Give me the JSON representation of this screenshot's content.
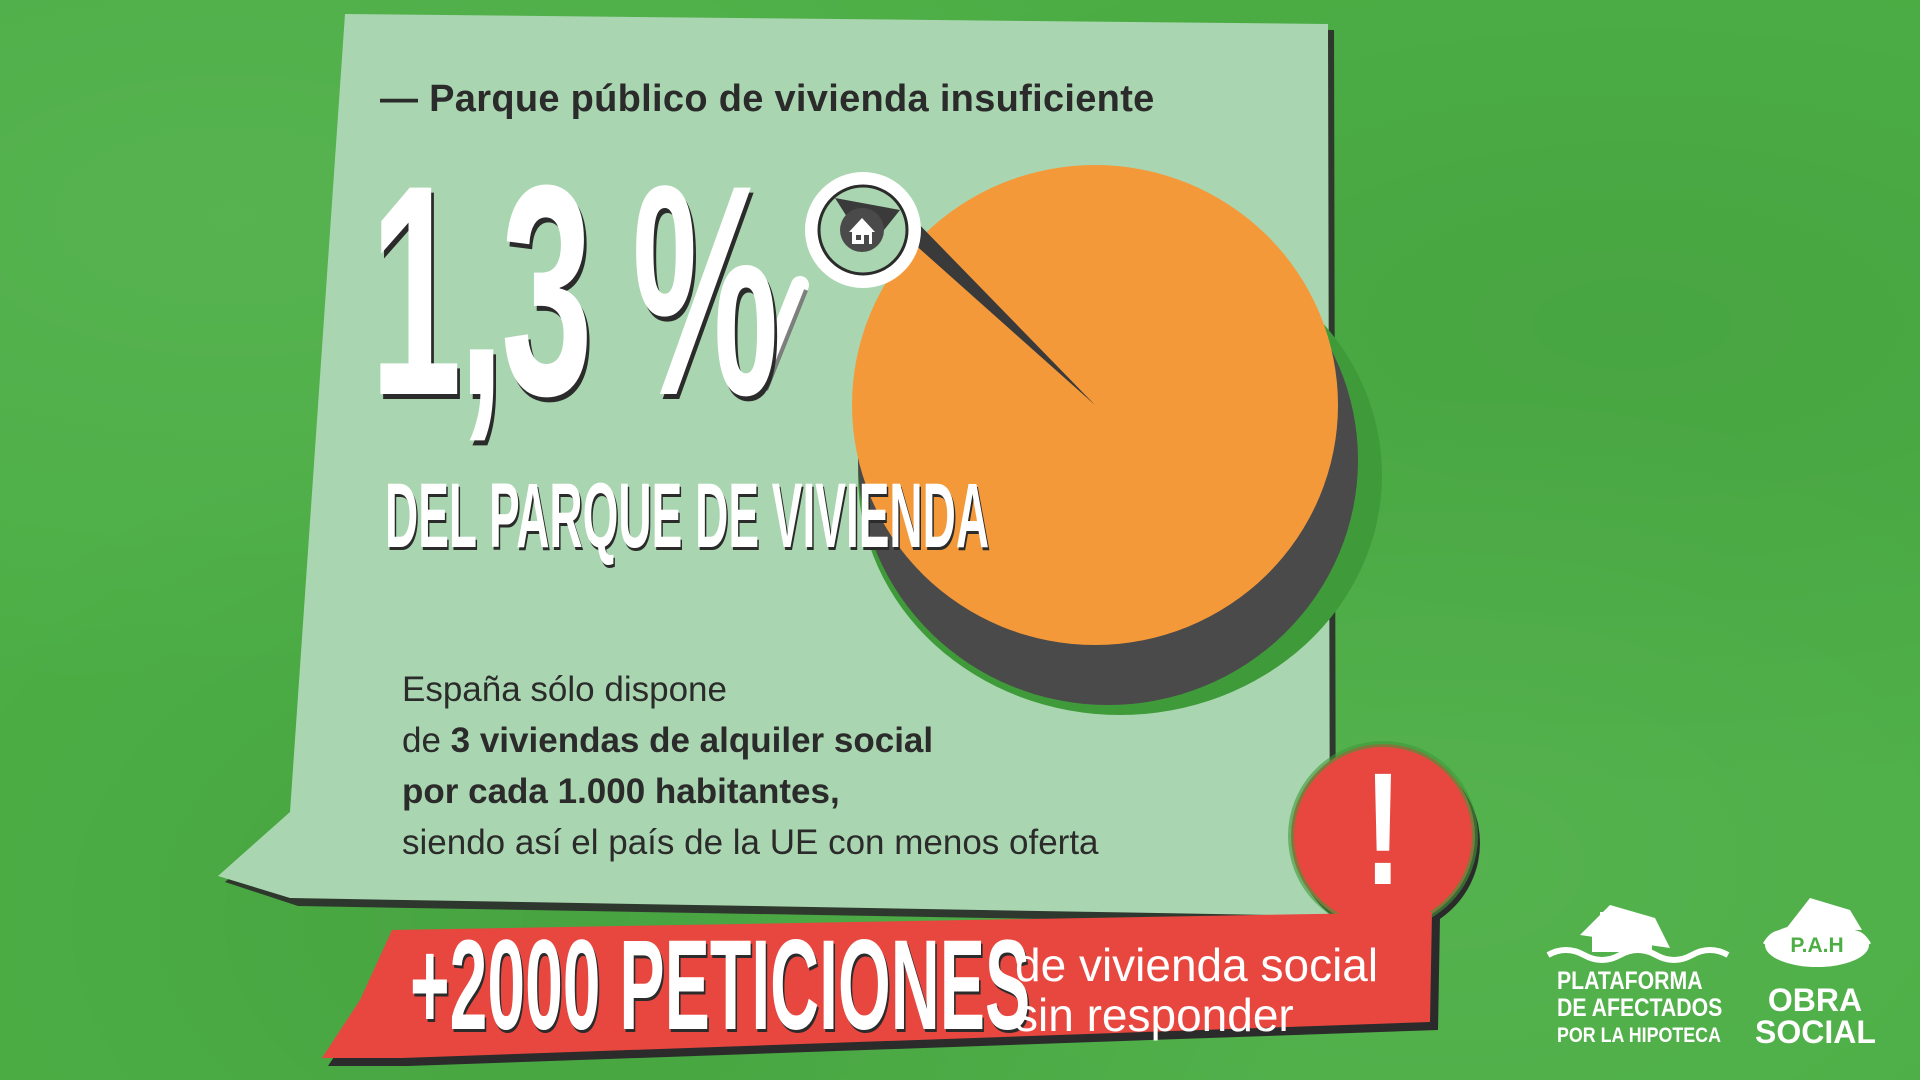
{
  "subtitle": "— Parque público de vivienda insuficiente",
  "headline_value": "1,3 %",
  "headline_label": "DEL PARQUE DE VIVIENDA",
  "pie": {
    "highlight_share_percent": 1.3,
    "main_color": "#f4993a",
    "side_color": "#4a4a4a",
    "icon": "house-icon"
  },
  "description": {
    "line1": "España sólo dispone",
    "line2_prefix": "de ",
    "line2_bold": "3 viviendas de alquiler social",
    "line3_bold": "por cada 1.000 habitantes,",
    "line4": "siendo así el país de la UE con menos oferta"
  },
  "alert": {
    "symbol": "!",
    "color": "#e8473f"
  },
  "banner": {
    "big": "+2000 PETICIONES",
    "small_line1": "de vivienda social",
    "small_line2": "sin responder",
    "color": "#e8473f"
  },
  "logo_left": {
    "line1": "PLATAFORMA",
    "line2": "DE AFECTADOS",
    "line3": "POR LA HIPOTECA"
  },
  "logo_right": {
    "badge": "P.A.H",
    "line1": "OBRA",
    "line2": "SOCIAL"
  },
  "colors": {
    "background": "#4cae45",
    "panel": "#a9d6b0",
    "text_dark": "#2b2b2b"
  }
}
